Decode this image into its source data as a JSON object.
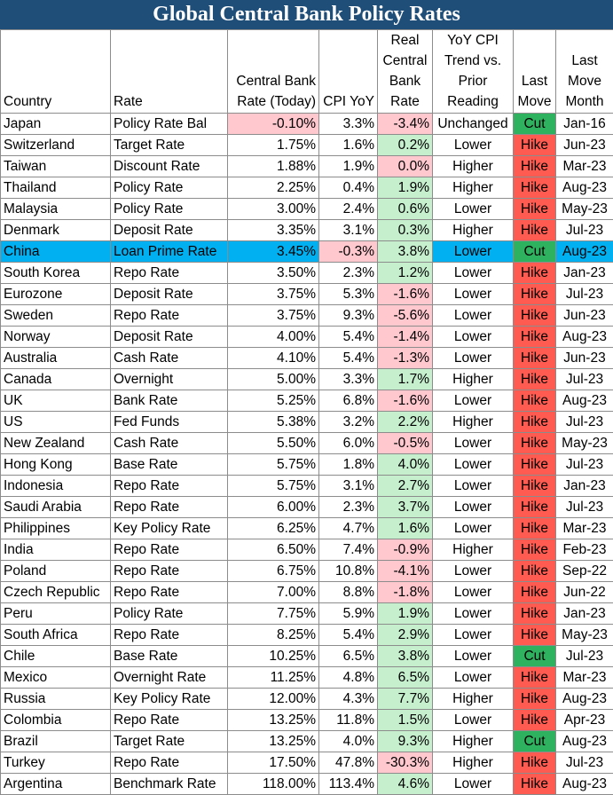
{
  "title": "Global Central Bank Policy Rates",
  "headers": {
    "country": "Country",
    "rate": "Rate",
    "cbr": "Central Bank Rate (Today)",
    "cpi": "CPI YoY",
    "real": "Real Central Bank Rate",
    "trend": "YoY CPI Trend vs. Prior Reading",
    "move": "Last Move",
    "month": "Last Move Month"
  },
  "colors": {
    "header_bg": "#1f4e79",
    "positive_bg": "#c6efce",
    "negative_bg": "#ffc7ce",
    "hike_bg": "#ff5b51",
    "cut_bg": "#2eb25f",
    "highlight_row_bg": "#00b0f0"
  },
  "highlight_country": "China",
  "rows": [
    {
      "country": "Japan",
      "rate": "Policy Rate Bal",
      "cbr": "-0.10%",
      "cpi": "3.3%",
      "real": "-3.4%",
      "trend": "Unchanged",
      "move": "Cut",
      "month": "Jan-16"
    },
    {
      "country": "Switzerland",
      "rate": "Target Rate",
      "cbr": "1.75%",
      "cpi": "1.6%",
      "real": "0.2%",
      "trend": "Lower",
      "move": "Hike",
      "month": "Jun-23"
    },
    {
      "country": "Taiwan",
      "rate": "Discount Rate",
      "cbr": "1.88%",
      "cpi": "1.9%",
      "real": "0.0%",
      "trend": "Higher",
      "move": "Hike",
      "month": "Mar-23"
    },
    {
      "country": "Thailand",
      "rate": "Policy Rate",
      "cbr": "2.25%",
      "cpi": "0.4%",
      "real": "1.9%",
      "trend": "Higher",
      "move": "Hike",
      "month": "Aug-23"
    },
    {
      "country": "Malaysia",
      "rate": "Policy Rate",
      "cbr": "3.00%",
      "cpi": "2.4%",
      "real": "0.6%",
      "trend": "Lower",
      "move": "Hike",
      "month": "May-23"
    },
    {
      "country": "Denmark",
      "rate": "Deposit Rate",
      "cbr": "3.35%",
      "cpi": "3.1%",
      "real": "0.3%",
      "trend": "Higher",
      "move": "Hike",
      "month": "Jul-23"
    },
    {
      "country": "China",
      "rate": "Loan Prime Rate",
      "cbr": "3.45%",
      "cpi": "-0.3%",
      "real": "3.8%",
      "trend": "Lower",
      "move": "Cut",
      "month": "Aug-23"
    },
    {
      "country": "South Korea",
      "rate": "Repo Rate",
      "cbr": "3.50%",
      "cpi": "2.3%",
      "real": "1.2%",
      "trend": "Lower",
      "move": "Hike",
      "month": "Jan-23"
    },
    {
      "country": "Eurozone",
      "rate": "Deposit Rate",
      "cbr": "3.75%",
      "cpi": "5.3%",
      "real": "-1.6%",
      "trend": "Lower",
      "move": "Hike",
      "month": "Jul-23"
    },
    {
      "country": "Sweden",
      "rate": "Repo Rate",
      "cbr": "3.75%",
      "cpi": "9.3%",
      "real": "-5.6%",
      "trend": "Lower",
      "move": "Hike",
      "month": "Jun-23"
    },
    {
      "country": "Norway",
      "rate": "Deposit Rate",
      "cbr": "4.00%",
      "cpi": "5.4%",
      "real": "-1.4%",
      "trend": "Lower",
      "move": "Hike",
      "month": "Aug-23"
    },
    {
      "country": "Australia",
      "rate": "Cash Rate",
      "cbr": "4.10%",
      "cpi": "5.4%",
      "real": "-1.3%",
      "trend": "Lower",
      "move": "Hike",
      "month": "Jun-23"
    },
    {
      "country": "Canada",
      "rate": "Overnight",
      "cbr": "5.00%",
      "cpi": "3.3%",
      "real": "1.7%",
      "trend": "Higher",
      "move": "Hike",
      "month": "Jul-23"
    },
    {
      "country": "UK",
      "rate": "Bank Rate",
      "cbr": "5.25%",
      "cpi": "6.8%",
      "real": "-1.6%",
      "trend": "Lower",
      "move": "Hike",
      "month": "Aug-23"
    },
    {
      "country": "US",
      "rate": "Fed Funds",
      "cbr": "5.38%",
      "cpi": "3.2%",
      "real": "2.2%",
      "trend": "Higher",
      "move": "Hike",
      "month": "Jul-23"
    },
    {
      "country": "New Zealand",
      "rate": "Cash Rate",
      "cbr": "5.50%",
      "cpi": "6.0%",
      "real": "-0.5%",
      "trend": "Lower",
      "move": "Hike",
      "month": "May-23"
    },
    {
      "country": "Hong Kong",
      "rate": "Base Rate",
      "cbr": "5.75%",
      "cpi": "1.8%",
      "real": "4.0%",
      "trend": "Lower",
      "move": "Hike",
      "month": "Jul-23"
    },
    {
      "country": "Indonesia",
      "rate": "Repo Rate",
      "cbr": "5.75%",
      "cpi": "3.1%",
      "real": "2.7%",
      "trend": "Lower",
      "move": "Hike",
      "month": "Jan-23"
    },
    {
      "country": "Saudi Arabia",
      "rate": "Repo Rate",
      "cbr": "6.00%",
      "cpi": "2.3%",
      "real": "3.7%",
      "trend": "Lower",
      "move": "Hike",
      "month": "Jul-23"
    },
    {
      "country": "Philippines",
      "rate": "Key Policy Rate",
      "cbr": "6.25%",
      "cpi": "4.7%",
      "real": "1.6%",
      "trend": "Lower",
      "move": "Hike",
      "month": "Mar-23"
    },
    {
      "country": "India",
      "rate": "Repo Rate",
      "cbr": "6.50%",
      "cpi": "7.4%",
      "real": "-0.9%",
      "trend": "Higher",
      "move": "Hike",
      "month": "Feb-23"
    },
    {
      "country": "Poland",
      "rate": "Repo Rate",
      "cbr": "6.75%",
      "cpi": "10.8%",
      "real": "-4.1%",
      "trend": "Lower",
      "move": "Hike",
      "month": "Sep-22"
    },
    {
      "country": "Czech Republic",
      "rate": "Repo Rate",
      "cbr": "7.00%",
      "cpi": "8.8%",
      "real": "-1.8%",
      "trend": "Lower",
      "move": "Hike",
      "month": "Jun-22"
    },
    {
      "country": "Peru",
      "rate": "Policy Rate",
      "cbr": "7.75%",
      "cpi": "5.9%",
      "real": "1.9%",
      "trend": "Lower",
      "move": "Hike",
      "month": "Jan-23"
    },
    {
      "country": "South Africa",
      "rate": "Repo Rate",
      "cbr": "8.25%",
      "cpi": "5.4%",
      "real": "2.9%",
      "trend": "Lower",
      "move": "Hike",
      "month": "May-23"
    },
    {
      "country": "Chile",
      "rate": "Base Rate",
      "cbr": "10.25%",
      "cpi": "6.5%",
      "real": "3.8%",
      "trend": "Lower",
      "move": "Cut",
      "month": "Jul-23"
    },
    {
      "country": "Mexico",
      "rate": "Overnight Rate",
      "cbr": "11.25%",
      "cpi": "4.8%",
      "real": "6.5%",
      "trend": "Lower",
      "move": "Hike",
      "month": "Mar-23"
    },
    {
      "country": "Russia",
      "rate": "Key Policy Rate",
      "cbr": "12.00%",
      "cpi": "4.3%",
      "real": "7.7%",
      "trend": "Higher",
      "move": "Hike",
      "month": "Aug-23"
    },
    {
      "country": "Colombia",
      "rate": "Repo Rate",
      "cbr": "13.25%",
      "cpi": "11.8%",
      "real": "1.5%",
      "trend": "Lower",
      "move": "Hike",
      "month": "Apr-23"
    },
    {
      "country": "Brazil",
      "rate": "Target Rate",
      "cbr": "13.25%",
      "cpi": "4.0%",
      "real": "9.3%",
      "trend": "Higher",
      "move": "Cut",
      "month": "Aug-23"
    },
    {
      "country": "Turkey",
      "rate": "Repo Rate",
      "cbr": "17.50%",
      "cpi": "47.8%",
      "real": "-30.3%",
      "trend": "Higher",
      "move": "Hike",
      "month": "Jul-23"
    },
    {
      "country": "Argentina",
      "rate": "Benchmark Rate",
      "cbr": "118.00%",
      "cpi": "113.4%",
      "real": "4.6%",
      "trend": "Lower",
      "move": "Hike",
      "month": "Aug-23"
    }
  ]
}
